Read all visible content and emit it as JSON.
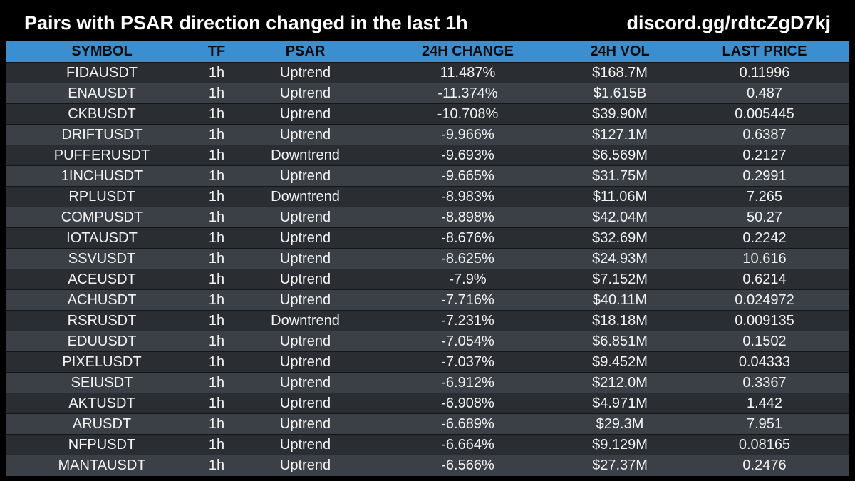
{
  "header": {
    "title": "Pairs with PSAR direction changed in the last 1h",
    "link": "discord.gg/rdtcZgD7kj"
  },
  "colors": {
    "background": "#000000",
    "header_row": "#3b8fd0",
    "row_dark": "#2a2e33",
    "row_light": "#3b4046",
    "text": "#f2f2f2"
  },
  "table": {
    "columns": [
      "SYMBOL",
      "TF",
      "PSAR",
      "24H CHANGE",
      "24H VOL",
      "LAST PRICE"
    ],
    "rows": [
      [
        "FIDAUSDT",
        "1h",
        "Uptrend",
        "11.487%",
        "$168.7M",
        "0.11996"
      ],
      [
        "ENAUSDT",
        "1h",
        "Uptrend",
        "-11.374%",
        "$1.615B",
        "0.487"
      ],
      [
        "CKBUSDT",
        "1h",
        "Uptrend",
        "-10.708%",
        "$39.90M",
        "0.005445"
      ],
      [
        "DRIFTUSDT",
        "1h",
        "Uptrend",
        "-9.966%",
        "$127.1M",
        "0.6387"
      ],
      [
        "PUFFERUSDT",
        "1h",
        "Downtrend",
        "-9.693%",
        "$6.569M",
        "0.2127"
      ],
      [
        "1INCHUSDT",
        "1h",
        "Uptrend",
        "-9.665%",
        "$31.75M",
        "0.2991"
      ],
      [
        "RPLUSDT",
        "1h",
        "Downtrend",
        "-8.983%",
        "$11.06M",
        "7.265"
      ],
      [
        "COMPUSDT",
        "1h",
        "Uptrend",
        "-8.898%",
        "$42.04M",
        "50.27"
      ],
      [
        "IOTAUSDT",
        "1h",
        "Uptrend",
        "-8.676%",
        "$32.69M",
        "0.2242"
      ],
      [
        "SSVUSDT",
        "1h",
        "Uptrend",
        "-8.625%",
        "$24.93M",
        "10.616"
      ],
      [
        "ACEUSDT",
        "1h",
        "Uptrend",
        "-7.9%",
        "$7.152M",
        "0.6214"
      ],
      [
        "ACHUSDT",
        "1h",
        "Uptrend",
        "-7.716%",
        "$40.11M",
        "0.024972"
      ],
      [
        "RSRUSDT",
        "1h",
        "Downtrend",
        "-7.231%",
        "$18.18M",
        "0.009135"
      ],
      [
        "EDUUSDT",
        "1h",
        "Uptrend",
        "-7.054%",
        "$6.851M",
        "0.1502"
      ],
      [
        "PIXELUSDT",
        "1h",
        "Uptrend",
        "-7.037%",
        "$9.452M",
        "0.04333"
      ],
      [
        "SEIUSDT",
        "1h",
        "Uptrend",
        "-6.912%",
        "$212.0M",
        "0.3367"
      ],
      [
        "AKTUSDT",
        "1h",
        "Uptrend",
        "-6.908%",
        "$4.971M",
        "1.442"
      ],
      [
        "ARUSDT",
        "1h",
        "Uptrend",
        "-6.689%",
        "$29.3M",
        "7.951"
      ],
      [
        "NFPUSDT",
        "1h",
        "Uptrend",
        "-6.664%",
        "$9.129M",
        "0.08165"
      ],
      [
        "MANTAUSDT",
        "1h",
        "Uptrend",
        "-6.566%",
        "$27.37M",
        "0.2476"
      ]
    ]
  }
}
